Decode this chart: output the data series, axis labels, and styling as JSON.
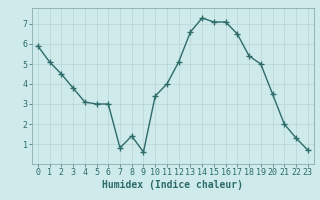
{
  "x": [
    0,
    1,
    2,
    3,
    4,
    5,
    6,
    7,
    8,
    9,
    10,
    11,
    12,
    13,
    14,
    15,
    16,
    17,
    18,
    19,
    20,
    21,
    22,
    23
  ],
  "y": [
    5.9,
    5.1,
    4.5,
    3.8,
    3.1,
    3.0,
    3.0,
    0.8,
    1.4,
    0.6,
    3.4,
    4.0,
    5.1,
    6.6,
    7.3,
    7.1,
    7.1,
    6.5,
    5.4,
    5.0,
    3.5,
    2.0,
    1.3,
    0.7
  ],
  "xlabel": "Humidex (Indice chaleur)",
  "line_color": "#2e6b6b",
  "marker": "+",
  "marker_size": 4,
  "linewidth": 1.0,
  "bg_color": "#ceeaea",
  "grid_color_major": "#b8d4d4",
  "grid_color_minor": "#b8d4d4",
  "xlim": [
    -0.5,
    23.5
  ],
  "ylim": [
    0,
    7.8
  ],
  "yticks": [
    1,
    2,
    3,
    4,
    5,
    6,
    7
  ],
  "xticks": [
    0,
    1,
    2,
    3,
    4,
    5,
    6,
    7,
    8,
    9,
    10,
    11,
    12,
    13,
    14,
    15,
    16,
    17,
    18,
    19,
    20,
    21,
    22,
    23
  ],
  "xlabel_fontsize": 7,
  "tick_fontsize": 6,
  "spine_color": "#7aa0a0"
}
